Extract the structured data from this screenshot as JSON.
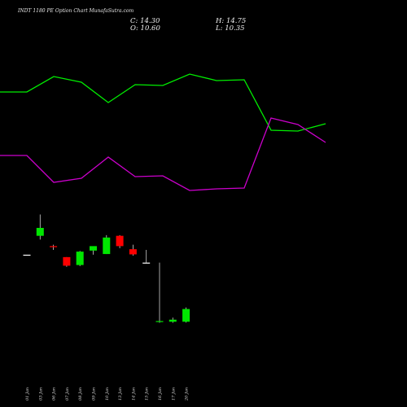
{
  "title": "INDT 1180  PE Option  Chart MunafaSutra.com",
  "ohlc": {
    "close": "C: 14.30",
    "high": "H: 14.75",
    "open": "O: 10.60",
    "low": "L: 10.35"
  },
  "colors": {
    "background": "#000000",
    "up": "#00e600",
    "down": "#ff0000",
    "flat": "#ffffff",
    "line_a": "#00ee00",
    "line_b": "#cc00cc",
    "text": "#f2f2f2"
  },
  "chart_data": [
    {
      "type": "line",
      "name": "indicator-lines",
      "x": [
        "01 Jan",
        "03 Jan",
        "06 Jan",
        "07 Jan",
        "08 Jan",
        "09 Jan",
        "10 Jan",
        "13 Jan",
        "14 Jan",
        "15 Jan",
        "16 Jan",
        "17 Jan",
        "20 Jan"
      ],
      "series": [
        {
          "color": "#00ee00",
          "values": [
            113,
            113,
            94,
            101,
            126,
            104,
            105,
            91,
            99,
            98,
            160,
            161,
            152
          ]
        },
        {
          "color": "#cc00cc",
          "values": [
            191,
            191,
            224,
            219,
            193,
            217,
            216,
            234,
            232,
            231,
            145,
            153,
            175
          ]
        }
      ],
      "ylim": [
        80,
        245
      ]
    },
    {
      "type": "candlestick",
      "categories": [
        "01 Jan",
        "03 Jan",
        "06 Jan",
        "07 Jan",
        "08 Jan",
        "09 Jan",
        "10 Jan",
        "13 Jan",
        "14 Jan",
        "15 Jan",
        "16 Jan",
        "17 Jan",
        "20 Jan"
      ],
      "open": [
        30.1,
        35.6,
        32.6,
        29.4,
        27.1,
        31.3,
        30.3,
        35.6,
        31.7,
        27.8,
        10.6,
        10.6,
        10.6
      ],
      "high": [
        30.1,
        41.8,
        33.0,
        29.4,
        31.2,
        32.5,
        35.8,
        35.8,
        33.0,
        31.5,
        27.8,
        11.8,
        14.75
      ],
      "low": [
        30.1,
        34.5,
        31.5,
        26.6,
        26.8,
        30.1,
        30.3,
        32.0,
        29.8,
        27.8,
        10.3,
        10.3,
        10.35
      ],
      "close": [
        30.1,
        37.9,
        32.3,
        26.9,
        31.0,
        32.6,
        35.1,
        32.6,
        30.2,
        27.8,
        10.8,
        11.2,
        14.3
      ],
      "ylim": [
        0,
        45
      ]
    }
  ]
}
